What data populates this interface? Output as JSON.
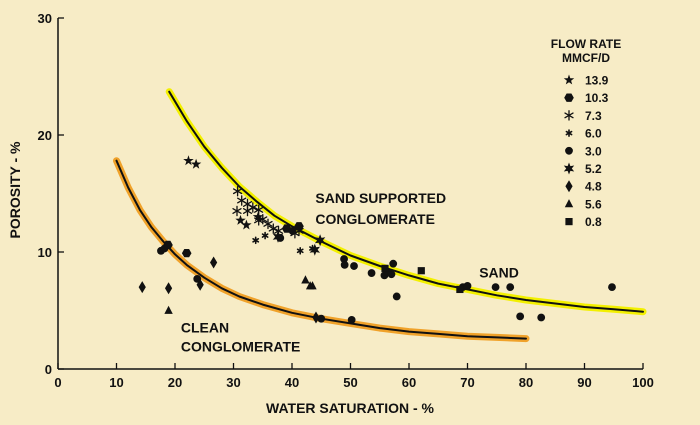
{
  "chart_data": {
    "type": "scatter",
    "xlabel": "WATER SATURATION - %",
    "ylabel": "POROSITY - %",
    "xlim": [
      0,
      100
    ],
    "ylim": [
      0,
      30
    ],
    "x_ticks": [
      0,
      10,
      20,
      30,
      40,
      50,
      60,
      70,
      80,
      90,
      100
    ],
    "y_ticks": [
      0,
      10,
      20,
      30
    ],
    "background": "#f7ecc6",
    "grid": false,
    "legend": {
      "title_line1": "FLOW RATE",
      "title_line2": "MMCF/D",
      "position": "top-right",
      "entries": [
        {
          "label": "13.9",
          "marker": "star"
        },
        {
          "label": "10.3",
          "marker": "hexagon"
        },
        {
          "label": "7.3",
          "marker": "asterisk"
        },
        {
          "label": "6.0",
          "marker": "small-asterisk"
        },
        {
          "label": "3.0",
          "marker": "circle"
        },
        {
          "label": "5.2",
          "marker": "star6"
        },
        {
          "label": "4.8",
          "marker": "diamond"
        },
        {
          "label": "5.6",
          "marker": "triangle"
        },
        {
          "label": "0.8",
          "marker": "square"
        }
      ]
    },
    "annotations": [
      {
        "text": "SAND SUPPORTED",
        "x": 44,
        "y": 14.2
      },
      {
        "text": "CONGLOMERATE",
        "x": 44,
        "y": 12.4
      },
      {
        "text": "SAND",
        "x": 72,
        "y": 7.8
      },
      {
        "text": "CLEAN",
        "x": 21,
        "y": 3.1
      },
      {
        "text": "CONGLOMERATE",
        "x": 21,
        "y": 1.5
      }
    ],
    "curves": [
      {
        "name": "SAND SUPPORTED CONGLOMERATE / SAND",
        "color": "#f3f000",
        "x": [
          19,
          22,
          25,
          28,
          31,
          34,
          37,
          40,
          45,
          50,
          55,
          60,
          65,
          70,
          75,
          80,
          85,
          90,
          95,
          100
        ],
        "y": [
          23.7,
          21.2,
          19.0,
          17.2,
          15.6,
          14.3,
          13.1,
          12.2,
          10.9,
          9.7,
          8.8,
          8.0,
          7.3,
          6.8,
          6.3,
          5.9,
          5.6,
          5.3,
          5.1,
          4.9
        ]
      },
      {
        "name": "CLEAN CONGLOMERATE",
        "color": "#f0a22a",
        "x": [
          10,
          12,
          14,
          16,
          18,
          20,
          22,
          25,
          28,
          31,
          35,
          40,
          45,
          50,
          55,
          60,
          65,
          70,
          75,
          80
        ],
        "y": [
          17.8,
          15.5,
          13.6,
          12.1,
          10.9,
          9.8,
          8.9,
          7.8,
          6.9,
          6.2,
          5.5,
          4.8,
          4.3,
          3.9,
          3.5,
          3.2,
          3.0,
          2.8,
          2.7,
          2.6
        ]
      }
    ],
    "series": [
      {
        "name": "13.9",
        "marker": "star",
        "points": [
          [
            22.3,
            17.8
          ],
          [
            23.6,
            17.5
          ],
          [
            31.2,
            12.7
          ],
          [
            32.2,
            12.3
          ],
          [
            34.2,
            13.0
          ]
        ]
      },
      {
        "name": "10.3",
        "marker": "hexagon",
        "points": [
          [
            18.8,
            10.6
          ],
          [
            22.0,
            9.9
          ],
          [
            39.1,
            12.0
          ],
          [
            41.2,
            12.2
          ]
        ]
      },
      {
        "name": "7.3",
        "marker": "asterisk",
        "points": [
          [
            30.7,
            15.2
          ],
          [
            31.4,
            14.4
          ],
          [
            32.4,
            14.1
          ],
          [
            33.3,
            13.8
          ],
          [
            34.3,
            13.6
          ],
          [
            35.0,
            12.8
          ],
          [
            35.9,
            12.4
          ],
          [
            36.8,
            12.0
          ],
          [
            37.7,
            11.8
          ],
          [
            30.6,
            13.5
          ],
          [
            32.4,
            13.5
          ],
          [
            34.3,
            12.7
          ],
          [
            40.5,
            11.6
          ],
          [
            41.2,
            11.8
          ]
        ]
      },
      {
        "name": "6.0",
        "marker": "small-asterisk",
        "points": [
          [
            33.8,
            11.0
          ],
          [
            35.4,
            11.4
          ],
          [
            41.4,
            10.1
          ],
          [
            43.5,
            10.3
          ]
        ]
      },
      {
        "name": "3.0",
        "marker": "circle",
        "points": [
          [
            17.6,
            10.1
          ],
          [
            18.2,
            10.3
          ],
          [
            23.8,
            7.7
          ],
          [
            38.0,
            11.2
          ],
          [
            40.1,
            11.8
          ],
          [
            48.9,
            9.4
          ],
          [
            49.0,
            8.9
          ],
          [
            50.6,
            8.8
          ],
          [
            53.6,
            8.2
          ],
          [
            55.8,
            8.0
          ],
          [
            56.3,
            8.3
          ],
          [
            57.0,
            8.1
          ],
          [
            57.3,
            9.0
          ],
          [
            57.9,
            6.2
          ],
          [
            69.2,
            7.0
          ],
          [
            70.0,
            7.1
          ],
          [
            74.8,
            7.0
          ],
          [
            77.3,
            7.0
          ],
          [
            79.0,
            4.5
          ],
          [
            82.6,
            4.4
          ],
          [
            94.7,
            7.0
          ],
          [
            50.2,
            4.2
          ],
          [
            45.0,
            4.3
          ]
        ]
      },
      {
        "name": "5.2",
        "marker": "star6",
        "points": [
          [
            37.6,
            11.3
          ],
          [
            43.9,
            10.2
          ],
          [
            44.8,
            11.0
          ]
        ]
      },
      {
        "name": "4.8",
        "marker": "diamond",
        "points": [
          [
            14.4,
            7.0
          ],
          [
            18.9,
            6.9
          ],
          [
            24.3,
            7.2
          ],
          [
            26.6,
            9.1
          ],
          [
            44.1,
            4.4
          ]
        ]
      },
      {
        "name": "5.6",
        "marker": "triangle",
        "points": [
          [
            18.9,
            5.0
          ],
          [
            42.3,
            7.6
          ],
          [
            43.1,
            7.1
          ],
          [
            43.5,
            7.1
          ]
        ]
      },
      {
        "name": "0.8",
        "marker": "square",
        "points": [
          [
            55.9,
            8.6
          ],
          [
            62.1,
            8.4
          ],
          [
            68.7,
            6.8
          ]
        ]
      }
    ]
  }
}
